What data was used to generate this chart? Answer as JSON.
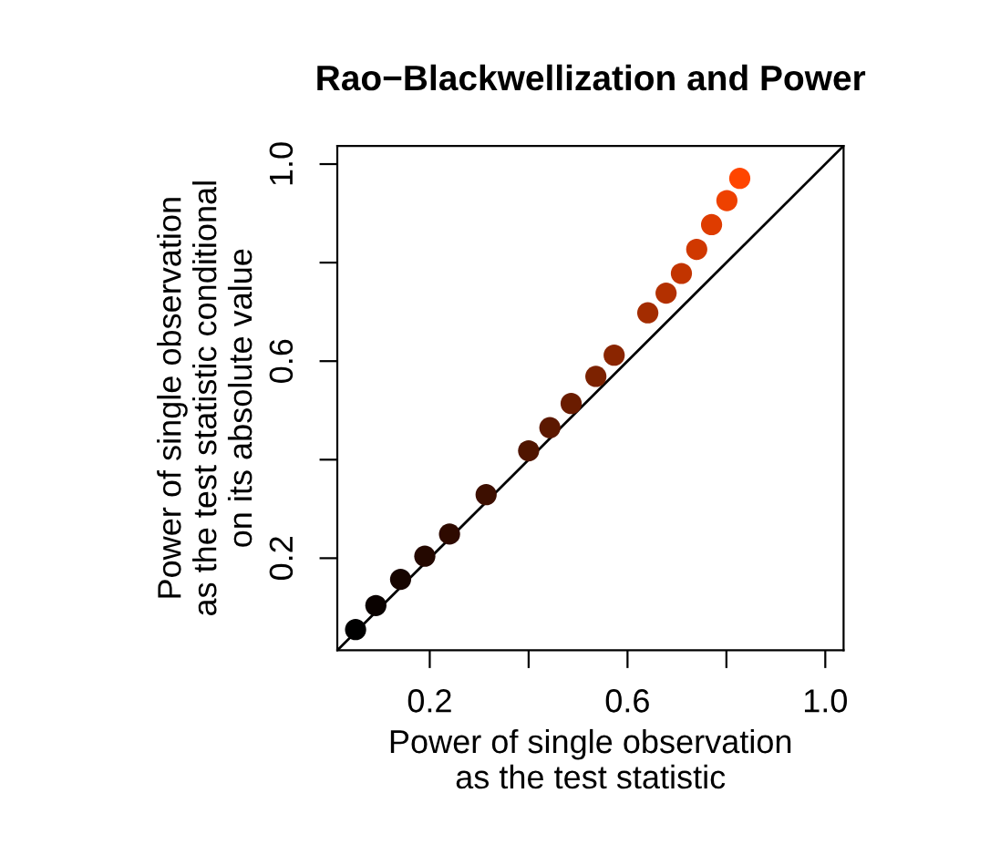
{
  "chart_data": {
    "type": "scatter",
    "title": "Rao−Blackwellization and Power",
    "xlabel": "Power of single observation\nas the test statistic",
    "ylabel": "Power of single observation\nas the test statistic conditional\non its absolute value",
    "xlim": [
      0.013,
      1.037
    ],
    "ylim": [
      0.013,
      1.037
    ],
    "xticks": [
      0.2,
      {
        "value": 0.4,
        "label": null
      },
      0.6,
      {
        "value": 0.8,
        "label": null
      },
      {
        "value": 1.0,
        "label": "1.0"
      }
    ],
    "yticks": [
      0.2,
      {
        "value": 0.4,
        "label": null
      },
      0.6,
      {
        "value": 0.8,
        "label": null
      },
      {
        "value": 1.0,
        "label": "1.0"
      }
    ],
    "grid": false,
    "legend": false,
    "marker": "circle",
    "series": [
      {
        "x": [
          0.05,
          0.091,
          0.141,
          0.19,
          0.24,
          0.314,
          0.4,
          0.443,
          0.486,
          0.536,
          0.573,
          0.641,
          0.678,
          0.709,
          0.74,
          0.77,
          0.801,
          0.827
        ],
        "values": [
          0.055,
          0.104,
          0.157,
          0.204,
          0.249,
          0.329,
          0.418,
          0.465,
          0.514,
          0.569,
          0.612,
          0.698,
          0.738,
          0.778,
          0.827,
          0.877,
          0.926,
          0.971
        ],
        "colors": [
          "#000000",
          "#0a0200",
          "#170500",
          "#240800",
          "#2e0a00",
          "#3d0f00",
          "#501500",
          "#5c1800",
          "#6a1c00",
          "#7c2200",
          "#8a2500",
          "#a32c00",
          "#b33000",
          "#c23400",
          "#d03800",
          "#de3c00",
          "#ee4100",
          "#ff4500"
        ]
      },
      {
        "type": "line",
        "x": [
          0.013,
          1.037
        ],
        "values": [
          0.013,
          1.037
        ],
        "color": "#000000",
        "line_style": "solid",
        "marker": "none"
      }
    ]
  }
}
